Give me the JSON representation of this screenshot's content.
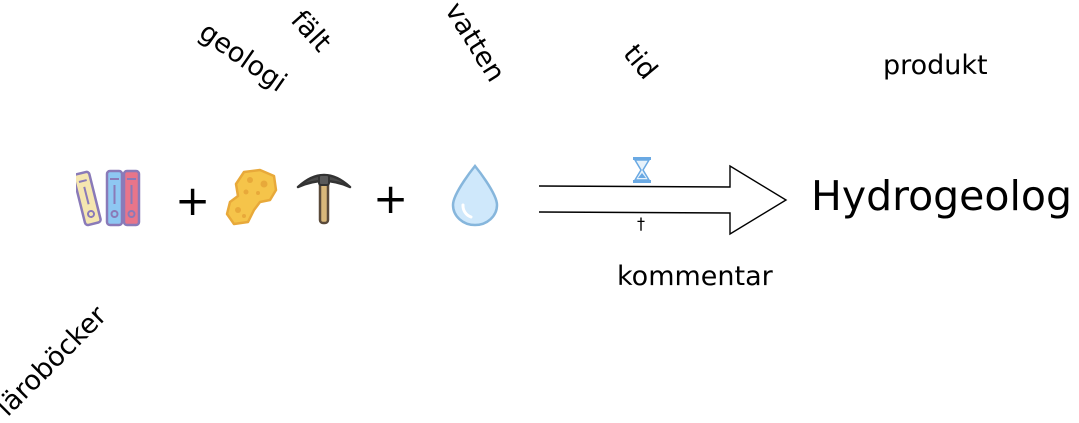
{
  "labels": {
    "geologi": "geologi",
    "falt": "fält",
    "vatten": "vatten",
    "tid": "tid",
    "produkt": "produkt",
    "larobocker": "läroböcker",
    "kommentar": "kommentar"
  },
  "operators": {
    "plus1": "+",
    "plus2": "+"
  },
  "product": {
    "name": "Hydrogeolog"
  },
  "arrow_marks": {
    "below": "†"
  },
  "icons": {
    "books": "books-icon",
    "rock": "gold-nugget-icon",
    "pickaxe": "pickaxe-icon",
    "drop": "water-drop-icon",
    "hourglass": "hourglass-icon"
  },
  "colors": {
    "book_yellow": "#f5e6b0",
    "book_blue": "#8ec7f2",
    "book_red": "#e8758a",
    "book_outline": "#8a7ab8",
    "rock": "#f5c44a",
    "rock_outline": "#e8a93a",
    "drop_fill": "#cfe8fb",
    "drop_outline": "#86b6dc",
    "hourglass": "#6aa9e3"
  }
}
